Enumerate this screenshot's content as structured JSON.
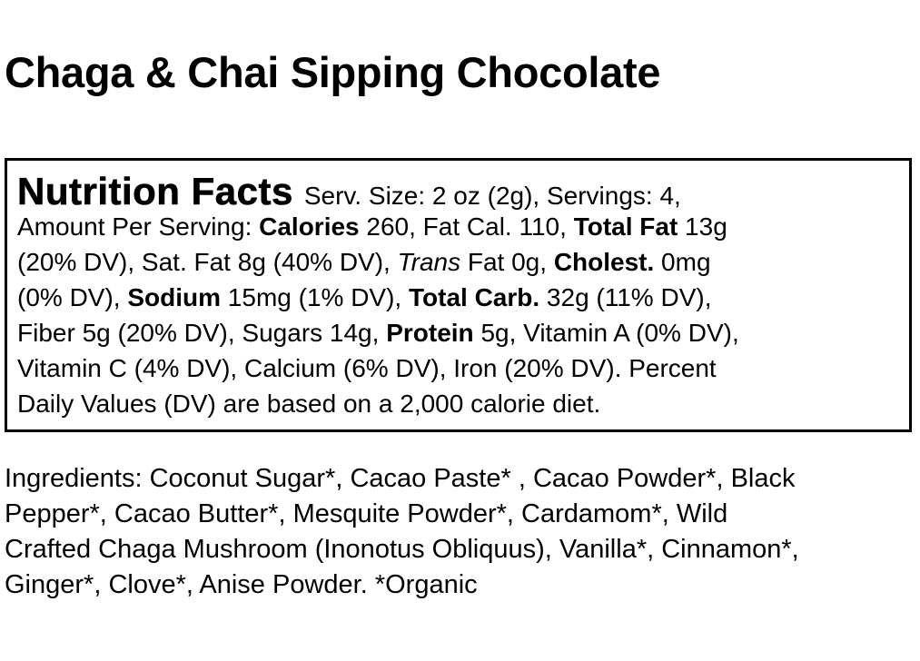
{
  "title": "Chaga & Chai Sipping Chocolate",
  "nutrition": {
    "heading": "Nutrition Facts",
    "lines": [
      [
        {
          "t": "Serv. Size: 2 oz (2g), Servings: 4,"
        }
      ],
      [
        {
          "t": "Amount Per Serving: "
        },
        {
          "t": "Calories",
          "s": "b"
        },
        {
          "t": " 260, Fat Cal. 110, "
        },
        {
          "t": "Total Fat",
          "s": "b"
        },
        {
          "t": " 13g"
        }
      ],
      [
        {
          "t": "(20% DV), Sat. Fat 8g (40% DV), "
        },
        {
          "t": "Trans",
          "s": "i"
        },
        {
          "t": " Fat 0g, "
        },
        {
          "t": "Cholest.",
          "s": "b"
        },
        {
          "t": " 0mg"
        }
      ],
      [
        {
          "t": "(0% DV), "
        },
        {
          "t": "Sodium",
          "s": "b"
        },
        {
          "t": " 15mg (1% DV), "
        },
        {
          "t": "Total Carb.",
          "s": "b"
        },
        {
          "t": " 32g (11% DV),"
        }
      ],
      [
        {
          "t": "Fiber 5g (20% DV), Sugars 14g, "
        },
        {
          "t": "Protein",
          "s": "b"
        },
        {
          "t": " 5g, Vitamin A (0% DV),"
        }
      ],
      [
        {
          "t": "Vitamin C (4% DV), Calcium (6% DV), Iron (20% DV). Percent"
        }
      ],
      [
        {
          "t": "Daily Values (DV) are based on a 2,000 calorie diet."
        }
      ]
    ]
  },
  "ingredients": [
    "Ingredients: Coconut Sugar*, Cacao Paste* , Cacao Powder*, Black",
    "Pepper*, Cacao Butter*, Mesquite Powder*, Cardamom*, Wild",
    "Crafted Chaga Mushroom (Inonotus Obliquus), Vanilla*, Cinnamon*,",
    "Ginger*, Clove*, Anise Powder. *Organic"
  ]
}
